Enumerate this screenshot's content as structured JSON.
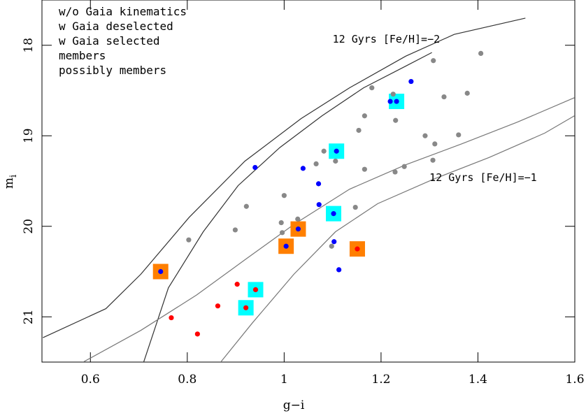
{
  "chart_data": {
    "type": "scatter",
    "xlabel": "g−i",
    "ylabel": "m",
    "ylabel_sub": "i",
    "xlim": [
      0.5,
      1.6
    ],
    "ylim": [
      21.5,
      17.5
    ],
    "xticks": [
      0.6,
      0.8,
      1,
      1.2,
      1.4,
      1.6
    ],
    "yticks": [
      18,
      19,
      20,
      21
    ],
    "legend": "upper left",
    "series": [
      {
        "name": "w/o Gaia kinematics",
        "color": "#ff0000",
        "marker": "dot",
        "x": [
          0.903,
          0.767,
          0.821,
          0.863,
          0.921,
          0.941,
          1.151
        ],
        "values": [
          20.64,
          21.01,
          21.19,
          20.88,
          20.9,
          20.7,
          20.25
        ]
      },
      {
        "name": "w Gaia deselected",
        "color": "#888888",
        "marker": "dot",
        "x": [
          0.803,
          0.899,
          0.922,
          1.0,
          0.994,
          0.996,
          1.028,
          1.066,
          1.082,
          1.106,
          1.098,
          1.147,
          1.166,
          1.154,
          1.166,
          1.181,
          1.225,
          1.23,
          1.229,
          1.248,
          1.291,
          1.311,
          1.307,
          1.308,
          1.33,
          1.378,
          1.36,
          1.406
        ],
        "values": [
          20.15,
          20.04,
          19.78,
          19.66,
          19.96,
          20.07,
          19.92,
          19.31,
          19.17,
          19.28,
          20.22,
          19.79,
          19.37,
          18.94,
          18.78,
          18.47,
          18.54,
          18.83,
          19.4,
          19.34,
          19.0,
          19.09,
          19.27,
          18.17,
          18.57,
          18.53,
          18.99,
          18.09
        ]
      },
      {
        "name": "w Gaia selected",
        "color": "#0000ff",
        "marker": "dot",
        "x": [
          0.745,
          0.94,
          1.039,
          1.071,
          1.072,
          1.108,
          1.102,
          1.029,
          1.004,
          1.103,
          1.113,
          1.219,
          1.232,
          1.262
        ],
        "values": [
          20.5,
          19.35,
          19.36,
          19.53,
          19.76,
          19.17,
          19.86,
          20.03,
          20.22,
          20.17,
          20.48,
          18.62,
          18.62,
          18.4
        ]
      },
      {
        "name": "members",
        "color": "#00ffff",
        "marker": "square",
        "x": [
          1.232,
          1.108,
          1.102,
          0.941,
          0.921
        ],
        "values": [
          18.62,
          19.17,
          19.86,
          20.7,
          20.9
        ]
      },
      {
        "name": "possibly members",
        "color": "#ff7f00",
        "marker": "square",
        "x": [
          0.745,
          1.029,
          1.004,
          1.151
        ],
        "values": [
          20.5,
          20.03,
          20.22,
          20.25
        ]
      },
      {
        "color": "#333333",
        "marker": "line",
        "x": [
          0.502,
          0.632,
          0.704,
          0.804,
          0.919,
          1.035,
          1.135,
          1.251,
          1.351,
          1.498
        ],
        "values": [
          21.23,
          20.91,
          20.53,
          19.9,
          19.28,
          18.81,
          18.47,
          18.12,
          17.88,
          17.7
        ]
      },
      {
        "color": "#333333",
        "marker": "line",
        "x": [
          0.71,
          0.761,
          0.833,
          0.905,
          0.991,
          1.078,
          1.164,
          1.251,
          1.305
        ],
        "values": [
          21.5,
          20.68,
          20.06,
          19.55,
          19.13,
          18.78,
          18.47,
          18.23,
          18.08
        ]
      },
      {
        "color": "#777777",
        "marker": "line",
        "x": [
          0.585,
          0.704,
          0.819,
          0.919,
          1.02,
          1.135,
          1.251,
          1.366,
          1.481,
          1.599
        ],
        "values": [
          21.5,
          21.15,
          20.76,
          20.37,
          19.98,
          19.59,
          19.32,
          19.09,
          18.85,
          18.58
        ]
      },
      {
        "color": "#777777",
        "marker": "line",
        "x": [
          0.869,
          0.934,
          1.02,
          1.106,
          1.193,
          1.308,
          1.423,
          1.538,
          1.599
        ],
        "values": [
          21.5,
          21.07,
          20.53,
          20.06,
          19.75,
          19.48,
          19.24,
          18.97,
          18.78
        ]
      }
    ],
    "annotations": [
      {
        "text": "12 Gyrs [Fe/H]=−2",
        "x": 1.1,
        "y": 17.97,
        "color": "#333333"
      },
      {
        "text": "12 Gyrs [Fe/H]=−1",
        "x": 1.3,
        "y": 19.5,
        "color": "#777777"
      }
    ]
  }
}
